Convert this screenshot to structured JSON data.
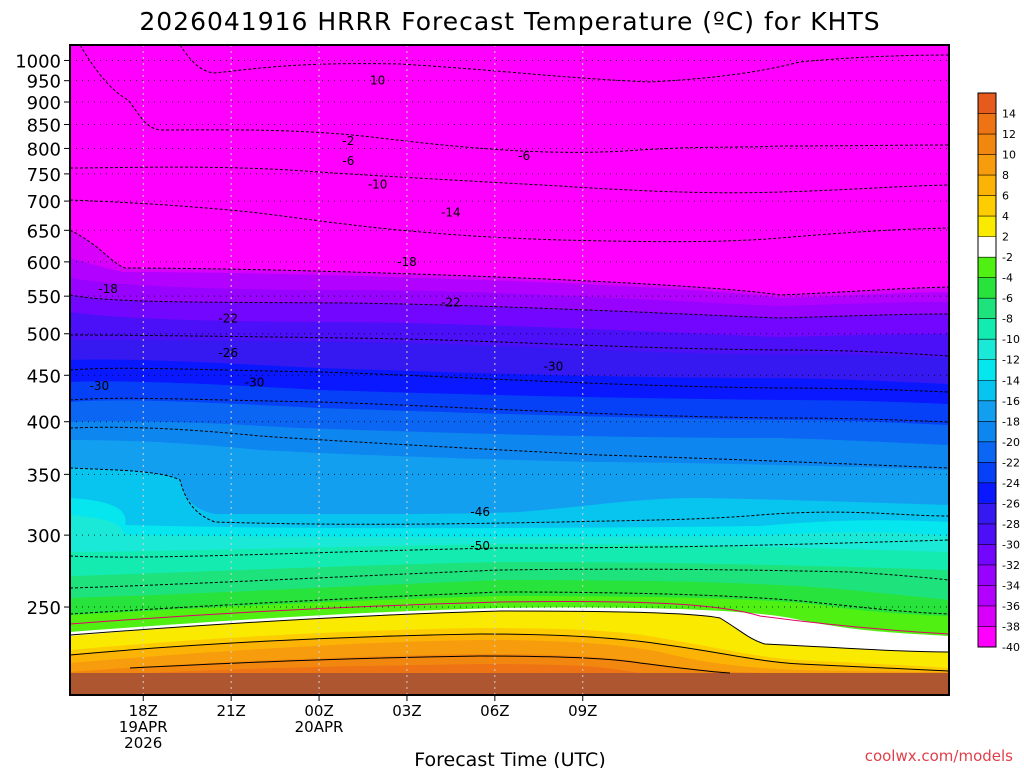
{
  "chart_data": {
    "type": "heatmap",
    "title": "2026041916 HRRR Forecast Temperature (ºC) for KHTS",
    "xlabel": "Forecast Time (UTC)",
    "ylabel": "",
    "credit": "coolwx.com/models",
    "x_range_hours": [
      -2.5,
      27.5
    ],
    "y_axis": {
      "scale": "log-pressure",
      "range": [
        1040,
        200
      ],
      "unit": "hPa"
    },
    "yticks": [
      "250",
      "300",
      "350",
      "400",
      "450",
      "500",
      "550",
      "600",
      "650",
      "700",
      "750",
      "800",
      "850",
      "900",
      "950",
      "1000"
    ],
    "xticks": [
      {
        "hour": 0,
        "lines": [
          "18Z",
          "19APR",
          "2026"
        ]
      },
      {
        "hour": 3,
        "lines": [
          "21Z"
        ]
      },
      {
        "hour": 6,
        "lines": [
          "00Z",
          "20APR"
        ]
      },
      {
        "hour": 9,
        "lines": [
          "03Z"
        ]
      },
      {
        "hour": 12,
        "lines": [
          "06Z"
        ]
      },
      {
        "hour": 15,
        "lines": [
          "09Z"
        ]
      }
    ],
    "grid": true,
    "legend_position": "right",
    "colorbar": {
      "levels": [
        "14",
        "12",
        "10",
        "8",
        "6",
        "4",
        "2",
        "-2",
        "-4",
        "-6",
        "-8",
        "-10",
        "-12",
        "-14",
        "-16",
        "-18",
        "-20",
        "-22",
        "-24",
        "-26",
        "-28",
        "-30",
        "-32",
        "-34",
        "-36",
        "-38",
        "-40"
      ],
      "colors": [
        "#e65a1e",
        "#ee7314",
        "#f2870f",
        "#f79c0c",
        "#fbb306",
        "#fdcd02",
        "#f9ea00",
        "#ffffff",
        "#4ff012",
        "#27e33b",
        "#1ee37d",
        "#13ebb1",
        "#1be9d8",
        "#05e6ee",
        "#08c5ef",
        "#139ff0",
        "#0d86f0",
        "#0b66f3",
        "#0641f7",
        "#0a18ff",
        "#3519f0",
        "#4b0ff8",
        "#7306ff",
        "#9802ff",
        "#b301ff",
        "#d800fa",
        "#ff00ff"
      ]
    },
    "isotherms": [
      {
        "label": "-50",
        "hour": 11.5,
        "pressure": 292
      },
      {
        "label": "-46",
        "hour": 11.5,
        "pressure": 318
      },
      {
        "label": "-30",
        "hour": -1.5,
        "pressure": 438
      },
      {
        "label": "-30",
        "hour": 3.8,
        "pressure": 442
      },
      {
        "label": "-30",
        "hour": 14.0,
        "pressure": 460
      },
      {
        "label": "-26",
        "hour": 2.9,
        "pressure": 476
      },
      {
        "label": "-22",
        "hour": 2.9,
        "pressure": 520
      },
      {
        "label": "-22",
        "hour": 10.5,
        "pressure": 541
      },
      {
        "label": "-18",
        "hour": -1.2,
        "pressure": 560
      },
      {
        "label": "-18",
        "hour": 9.0,
        "pressure": 600
      },
      {
        "label": "-14",
        "hour": 10.5,
        "pressure": 680
      },
      {
        "label": "-10",
        "hour": 8.0,
        "pressure": 730
      },
      {
        "label": "-6",
        "hour": 7.0,
        "pressure": 775
      },
      {
        "label": "-6",
        "hour": 13.0,
        "pressure": 785
      },
      {
        "label": "-2",
        "hour": 7.0,
        "pressure": 815
      },
      {
        "label": "10",
        "hour": 8.0,
        "pressure": 950
      }
    ]
  }
}
